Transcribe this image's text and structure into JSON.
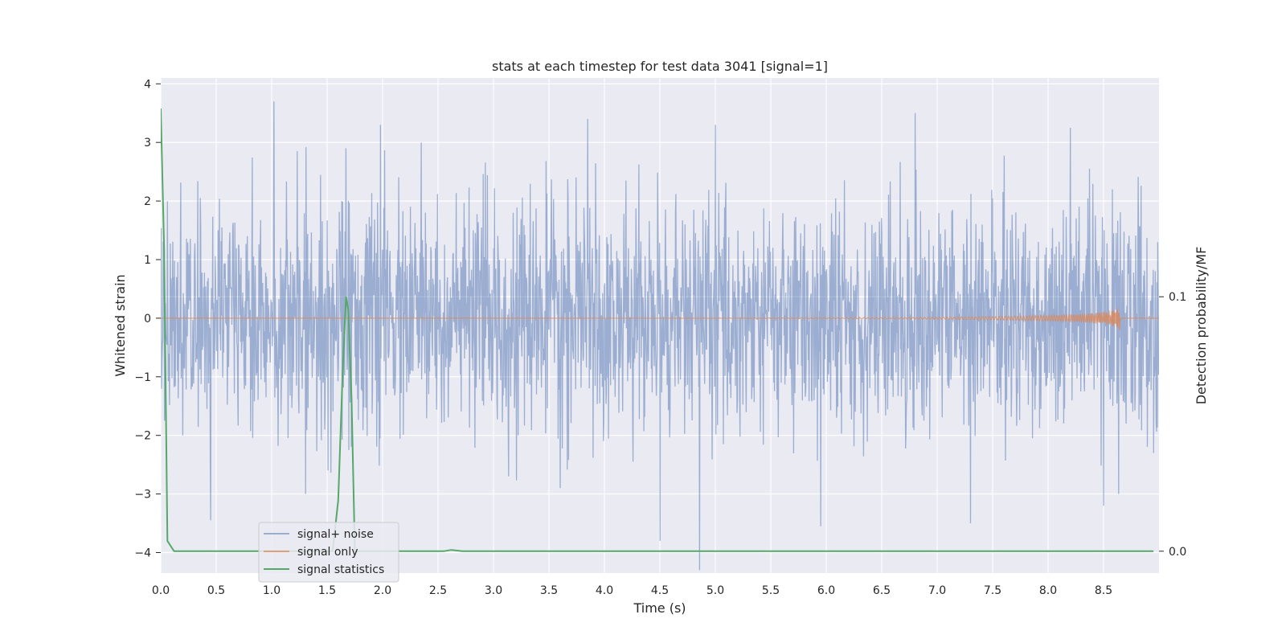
{
  "chart_data": {
    "type": "line",
    "title": "stats at each timestep for test data 3041 [signal=1]",
    "xlabel": "Time (s)",
    "ylabel": "Whitened strain",
    "y2label": "Detection probability/MF",
    "xlim": [
      0.0,
      9.0
    ],
    "ylim": [
      -4.35,
      4.1
    ],
    "y2lim": [
      -0.0086,
      0.186
    ],
    "xticks": [
      "0.0",
      "0.5",
      "1.0",
      "1.5",
      "2.0",
      "2.5",
      "3.0",
      "3.5",
      "4.0",
      "4.5",
      "5.0",
      "5.5",
      "6.0",
      "6.5",
      "7.0",
      "7.5",
      "8.0",
      "8.5"
    ],
    "yticks": [
      "4",
      "3",
      "2",
      "1",
      "0",
      "−1",
      "−2",
      "−3",
      "−4"
    ],
    "y2ticks": [
      "0.1",
      "0.0"
    ],
    "grid": true,
    "legend_position": "lower-left",
    "colors": {
      "background": "#eaeaf2",
      "grid": "#ffffff",
      "signal_noise": "#4c72b0",
      "signal_only": "#dd8452",
      "signal_statistics": "#55a868"
    },
    "series": [
      {
        "name": "signal+ noise",
        "description_only": false,
        "noise_envelope_typical": 1.7,
        "peaks_x": [
          0.2,
          0.45,
          1.02,
          1.23,
          1.67,
          1.98,
          2.35,
          3.6,
          3.85,
          4.5,
          4.86,
          5.0,
          5.95,
          6.8,
          7.3,
          8.2,
          8.5,
          8.95
        ],
        "peaks_y": [
          -2.0,
          -3.45,
          3.7,
          2.85,
          2.9,
          3.3,
          3.0,
          -2.9,
          3.4,
          -3.8,
          -4.3,
          3.3,
          -3.55,
          3.5,
          -3.5,
          3.25,
          -3.2,
          -2.3
        ]
      },
      {
        "name": "signal only",
        "chirp_end_x": 8.65,
        "chirp_peak_amplitude": 0.22
      },
      {
        "name": "signal statistics",
        "x": [
          0.0,
          0.03,
          0.06,
          0.12,
          1.55,
          1.6,
          1.64,
          1.67,
          1.69,
          1.72,
          1.75,
          1.8,
          2.55,
          2.62,
          2.72,
          8.95
        ],
        "y": [
          0.174,
          0.12,
          0.004,
          0.0,
          0.0,
          0.02,
          0.07,
          0.1,
          0.095,
          0.06,
          0.0,
          0.0,
          0.0,
          0.0005,
          0.0,
          0.0
        ]
      }
    ]
  }
}
